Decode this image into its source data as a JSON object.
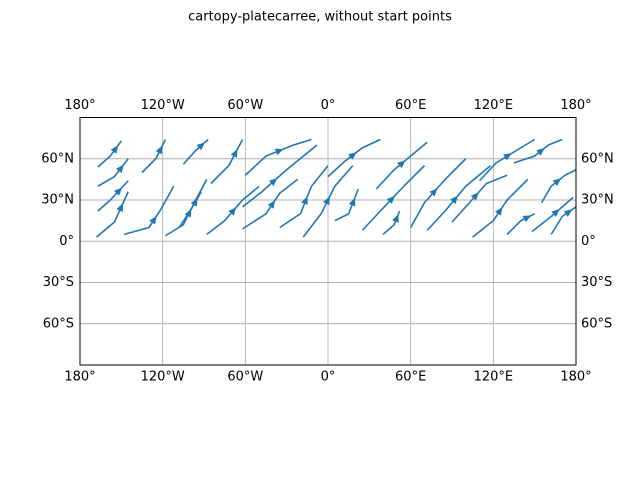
{
  "chart_data": {
    "type": "streamplot",
    "title": "cartopy-platecarree, without start points",
    "xlim": [
      -180,
      180
    ],
    "ylim": [
      -90,
      90
    ],
    "xticks": [
      {
        "value": -180,
        "label": "180°"
      },
      {
        "value": -120,
        "label": "120°W"
      },
      {
        "value": -60,
        "label": "60°W"
      },
      {
        "value": 0,
        "label": "0°"
      },
      {
        "value": 60,
        "label": "60°E"
      },
      {
        "value": 120,
        "label": "120°E"
      },
      {
        "value": 180,
        "label": "180°"
      }
    ],
    "yticks": [
      {
        "value": -60,
        "label": "60°S"
      },
      {
        "value": -30,
        "label": "30°S"
      },
      {
        "value": 0,
        "label": "0°"
      },
      {
        "value": 30,
        "label": "30°N"
      },
      {
        "value": 60,
        "label": "60°N"
      }
    ],
    "grid": true,
    "color": "#1f77b4",
    "streamlines": [
      {
        "x": [
          -168,
          -155,
          -145
        ],
        "y": [
          3,
          14,
          36
        ]
      },
      {
        "x": [
          -167,
          -158,
          -145
        ],
        "y": [
          22,
          30,
          44
        ]
      },
      {
        "x": [
          -167,
          -155,
          -145
        ],
        "y": [
          40,
          47,
          60
        ]
      },
      {
        "x": [
          -167,
          -158,
          -150
        ],
        "y": [
          54,
          62,
          73
        ]
      },
      {
        "x": [
          -148,
          -130,
          -122,
          -112
        ],
        "y": [
          5,
          10,
          22,
          40
        ]
      },
      {
        "x": [
          -135,
          -125,
          -118
        ],
        "y": [
          50,
          60,
          74
        ]
      },
      {
        "x": [
          -118,
          -105,
          -96,
          -88
        ],
        "y": [
          4,
          12,
          30,
          45
        ]
      },
      {
        "x": [
          -108,
          -100,
          -92
        ],
        "y": [
          10,
          22,
          36
        ]
      },
      {
        "x": [
          -105,
          -96,
          -87
        ],
        "y": [
          56,
          66,
          74
        ]
      },
      {
        "x": [
          -88,
          -75,
          -62,
          -50
        ],
        "y": [
          5,
          15,
          30,
          40
        ]
      },
      {
        "x": [
          -85,
          -72,
          -62
        ],
        "y": [
          42,
          55,
          74
        ]
      },
      {
        "x": [
          -62,
          -45,
          -35,
          -22
        ],
        "y": [
          9,
          20,
          35,
          45
        ]
      },
      {
        "x": [
          -62,
          -48,
          -30,
          -8
        ],
        "y": [
          25,
          36,
          52,
          70
        ]
      },
      {
        "x": [
          -60,
          -45,
          -25,
          -12
        ],
        "y": [
          48,
          62,
          70,
          74
        ]
      },
      {
        "x": [
          -35,
          -20,
          -12,
          0
        ],
        "y": [
          10,
          20,
          40,
          55
        ]
      },
      {
        "x": [
          -18,
          -5,
          5,
          18
        ],
        "y": [
          3,
          20,
          40,
          55
        ]
      },
      {
        "x": [
          0,
          12,
          25,
          38
        ],
        "y": [
          47,
          58,
          68,
          74
        ]
      },
      {
        "x": [
          5,
          15,
          22
        ],
        "y": [
          15,
          20,
          38
        ]
      },
      {
        "x": [
          25,
          38,
          55,
          70
        ],
        "y": [
          8,
          22,
          40,
          55
        ]
      },
      {
        "x": [
          35,
          48,
          60,
          72
        ],
        "y": [
          38,
          52,
          62,
          72
        ]
      },
      {
        "x": [
          40,
          48,
          52
        ],
        "y": [
          5,
          12,
          22
        ]
      },
      {
        "x": [
          60,
          70,
          85,
          100
        ],
        "y": [
          10,
          28,
          45,
          60
        ]
      },
      {
        "x": [
          72,
          85,
          100,
          118
        ],
        "y": [
          8,
          22,
          40,
          55
        ]
      },
      {
        "x": [
          90,
          100,
          115,
          130
        ],
        "y": [
          14,
          25,
          42,
          48
        ]
      },
      {
        "x": [
          105,
          120,
          130,
          145
        ],
        "y": [
          3,
          15,
          30,
          45
        ]
      },
      {
        "x": [
          110,
          122,
          140,
          150
        ],
        "y": [
          44,
          57,
          68,
          74
        ]
      },
      {
        "x": [
          130,
          140,
          150
        ],
        "y": [
          5,
          15,
          20
        ]
      },
      {
        "x": [
          135,
          150,
          160,
          170
        ],
        "y": [
          57,
          62,
          70,
          74
        ]
      },
      {
        "x": [
          148,
          162,
          170,
          178
        ],
        "y": [
          7,
          18,
          25,
          32
        ]
      },
      {
        "x": [
          155,
          162,
          172,
          180
        ],
        "y": [
          28,
          40,
          48,
          52
        ]
      },
      {
        "x": [
          162,
          170,
          180
        ],
        "y": [
          5,
          18,
          25
        ]
      }
    ]
  }
}
